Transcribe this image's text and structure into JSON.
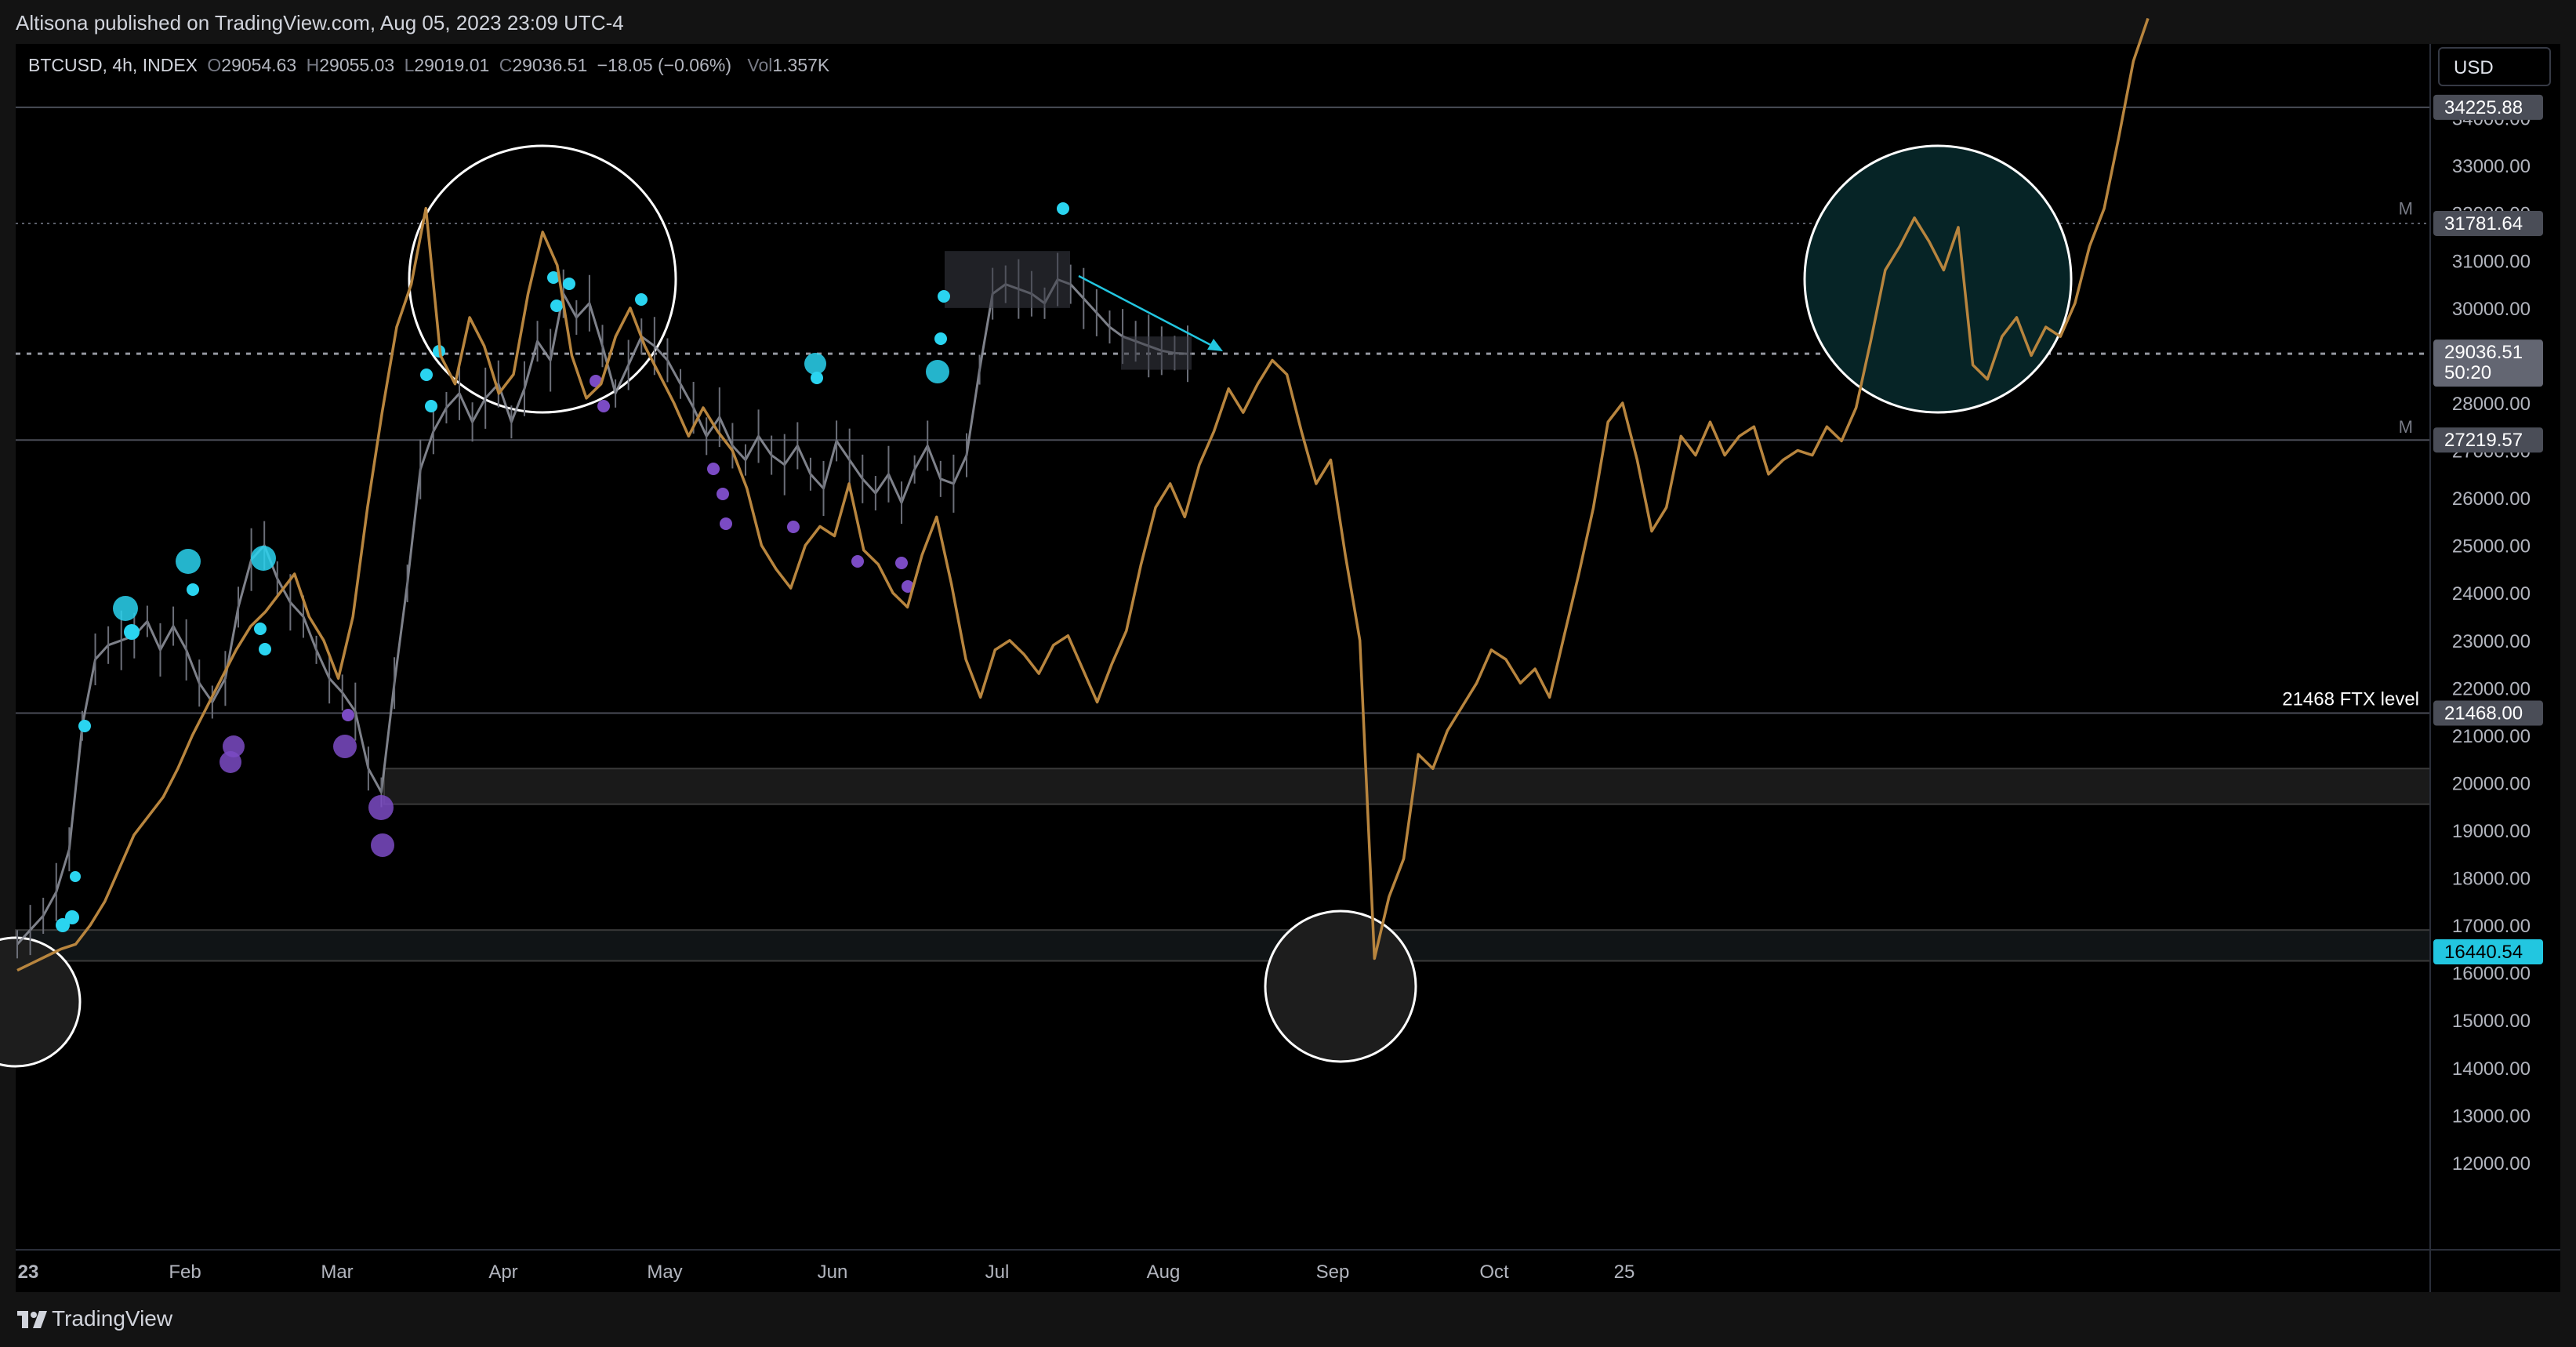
{
  "publisher_line": "Altisona published on TradingView.com, Aug 05, 2023 23:09 UTC-4",
  "legend": {
    "symbol": "BTCUSD, 4h, INDEX",
    "o_label": "O",
    "o_value": "29054.63",
    "h_label": "H",
    "h_value": "29055.03",
    "l_label": "L",
    "l_value": "29019.01",
    "c_label": "C",
    "c_value": "29036.51",
    "change": "−18.05 (−0.06%)",
    "vol_label": "Vol",
    "vol_value": "1.357K"
  },
  "currency_button": "USD",
  "brand": "TradingView",
  "colors": {
    "background": "#000000",
    "overlay_line": "#b8853e",
    "candles": "#8c8f99",
    "bullish_dots": "#2ad4f0",
    "bearish_dots": "#7b4bc4",
    "accent_teal": "#22c6e0"
  },
  "chart_data": {
    "type": "line",
    "title": "",
    "xlabel": "",
    "ylabel": "",
    "x_ticks": [
      "23",
      "Feb",
      "Mar",
      "Apr",
      "May",
      "Jun",
      "Jul",
      "Aug",
      "Sep",
      "Oct",
      "25"
    ],
    "ylim": [
      11000,
      36200
    ],
    "y_ticks": [
      12000,
      13000,
      14000,
      15000,
      16000,
      17000,
      18000,
      19000,
      20000,
      21000,
      22000,
      23000,
      24000,
      25000,
      26000,
      27000,
      28000,
      29000,
      30000,
      31000,
      32000,
      33000,
      34000
    ],
    "y_tick_labels": [
      "12000.00",
      "13000.00",
      "14000.00",
      "15000.00",
      "16000.00",
      "17000.00",
      "18000.00",
      "19000.00",
      "20000.00",
      "21000.00",
      "22000.00",
      "23000.00",
      "24000.00",
      "25000.00",
      "26000.00",
      "27000.00",
      "28000.00",
      "29000.00",
      "30000.00",
      "31000.00",
      "32000.00",
      "33000.00",
      "34000.00"
    ],
    "price_labels": [
      {
        "value": 34225.88,
        "text": "34225.88",
        "style": "grey"
      },
      {
        "value": 31781.64,
        "text": "31781.64",
        "style": "grey"
      },
      {
        "value": 29036.51,
        "text": "29036.51",
        "sub": "50:20",
        "style": "current"
      },
      {
        "value": 27219.57,
        "text": "27219.57",
        "style": "grey"
      },
      {
        "value": 21468.0,
        "text": "21468.00",
        "style": "grey"
      },
      {
        "value": 16440.54,
        "text": "16440.54",
        "style": "teal"
      }
    ],
    "horizontal_lines": [
      {
        "value": 34225.88,
        "style": "solid"
      },
      {
        "value": 31781.64,
        "style": "dotted"
      },
      {
        "value": 29036.51,
        "style": "dashed"
      },
      {
        "value": 27219.57,
        "style": "solid"
      },
      {
        "value": 21468.0,
        "style": "solid",
        "label": "21468 FTX level"
      },
      {
        "value": 16440.54,
        "style": "teal"
      }
    ],
    "zones": [
      {
        "from": 19550,
        "to": 20300,
        "x_start_index": 45
      },
      {
        "from": 16250,
        "to": 16900,
        "x_start_index": 0
      }
    ],
    "m_markers": [
      {
        "value": 32100,
        "text": "M"
      },
      {
        "value": 27500,
        "text": "M"
      }
    ],
    "series": [
      {
        "values": [
          16050,
          16200,
          16350,
          16500,
          16600,
          17000,
          17500,
          18200,
          18900,
          19300,
          19700,
          20300,
          21000,
          21600,
          22200,
          22800,
          23300,
          23600,
          24000,
          24400,
          23500,
          23000,
          22200,
          23500,
          25800,
          27800,
          29600,
          30500,
          32100,
          29000,
          28400,
          29800,
          29200,
          28200,
          28600,
          30300,
          31600,
          30900,
          29000,
          28100,
          28400,
          29400,
          30000,
          29200,
          28600,
          28000,
          27300,
          27900,
          27400,
          27000,
          26200,
          25000,
          24500,
          24100,
          25000,
          25400,
          25200,
          26300,
          24900,
          24600,
          24000,
          23700,
          24800,
          25600,
          24200,
          22600,
          21800,
          22800,
          23000,
          22700,
          22300,
          22900,
          23100,
          22400,
          21700,
          22500,
          23200,
          24600,
          25800,
          26300,
          25600,
          26700,
          27400,
          28300,
          27800,
          28400,
          28900,
          28600,
          27400,
          26300,
          26800,
          24800,
          23000,
          16300,
          17600,
          18400,
          20600,
          20300,
          21100,
          21600,
          22100,
          22800,
          22600,
          22100,
          22400,
          21800,
          23100,
          24400,
          25800,
          27600,
          28000,
          26800,
          25300,
          25800,
          27300,
          26900,
          27600,
          26900,
          27300,
          27500,
          26500,
          26800,
          27000,
          26900,
          27500,
          27200,
          27900,
          29300,
          30800,
          31300,
          31900,
          31400,
          30800,
          31700,
          28800,
          28500,
          29400,
          29800,
          29000,
          29600,
          29400,
          30100,
          31300,
          32100,
          33600,
          35200,
          36100
        ]
      },
      {
        "name": "",
        "type": "candles",
        "values": [
          16600,
          16900,
          17200,
          17700,
          18600,
          21200,
          22600,
          22900,
          23000,
          23100,
          23400,
          22800,
          23300,
          22800,
          22100,
          21700,
          22200,
          23700,
          24700,
          25000,
          24300,
          23800,
          23500,
          22800,
          22200,
          21900,
          21500,
          20300,
          19800,
          22100,
          24200,
          26600,
          27400,
          27900,
          28200,
          27600,
          28100,
          28400,
          27600,
          28300,
          29300,
          28900,
          30300,
          29800,
          30100,
          29200,
          28200,
          28800,
          29400,
          29200,
          28900,
          28400,
          27900,
          27300,
          27700,
          27100,
          26800,
          27300,
          26900,
          26700,
          27100,
          26500,
          26200,
          27200,
          26800,
          26400,
          26100,
          26500,
          25900,
          26600,
          27100,
          26400,
          26300,
          26900,
          28700,
          30300,
          30500,
          30400,
          30300,
          30100,
          30600,
          30500,
          30200,
          29900,
          29600,
          29400,
          29300,
          29200,
          29100,
          29050,
          29036
        ]
      }
    ],
    "annotations": [
      "21468 FTX level"
    ]
  }
}
